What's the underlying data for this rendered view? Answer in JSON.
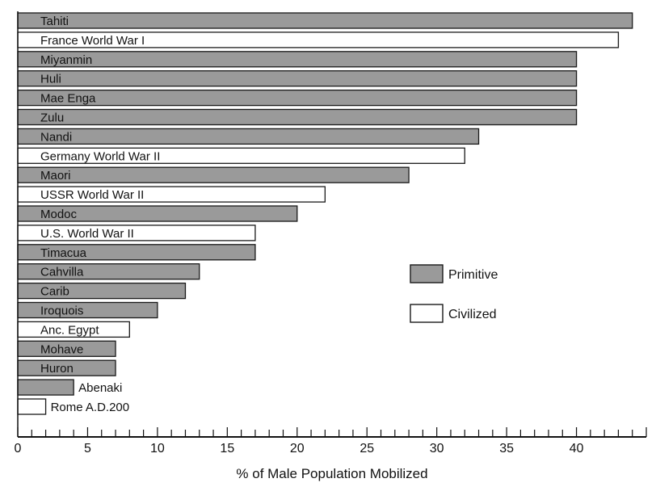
{
  "chart_data": {
    "type": "bar",
    "orientation": "horizontal",
    "xlabel": "% of Male Population Mobilized",
    "xlim": [
      0,
      45
    ],
    "xticks": [
      0,
      5,
      10,
      15,
      20,
      25,
      30,
      35,
      40
    ],
    "grid": false,
    "legend_position": "right",
    "colors": {
      "Primitive": "#9a9a9a",
      "Civilized": "#ffffff"
    },
    "bars": [
      {
        "label": "Tahiti",
        "value": 44,
        "group": "Primitive"
      },
      {
        "label": "France World War I",
        "value": 43,
        "group": "Civilized"
      },
      {
        "label": "Miyanmin",
        "value": 40,
        "group": "Primitive"
      },
      {
        "label": "Huli",
        "value": 40,
        "group": "Primitive"
      },
      {
        "label": "Mae Enga",
        "value": 40,
        "group": "Primitive"
      },
      {
        "label": "Zulu",
        "value": 40,
        "group": "Primitive"
      },
      {
        "label": "Nandi",
        "value": 33,
        "group": "Primitive"
      },
      {
        "label": "Germany World War II",
        "value": 32,
        "group": "Civilized"
      },
      {
        "label": "Maori",
        "value": 28,
        "group": "Primitive"
      },
      {
        "label": "USSR World War II",
        "value": 22,
        "group": "Civilized"
      },
      {
        "label": "Modoc",
        "value": 20,
        "group": "Primitive"
      },
      {
        "label": "U.S. World War II",
        "value": 17,
        "group": "Civilized"
      },
      {
        "label": "Timacua",
        "value": 17,
        "group": "Primitive"
      },
      {
        "label": "Cahvilla",
        "value": 13,
        "group": "Primitive"
      },
      {
        "label": "Carib",
        "value": 12,
        "group": "Primitive"
      },
      {
        "label": "Iroquois",
        "value": 10,
        "group": "Primitive"
      },
      {
        "label": "Anc. Egypt",
        "value": 8,
        "group": "Civilized"
      },
      {
        "label": "Mohave",
        "value": 7,
        "group": "Primitive"
      },
      {
        "label": "Huron",
        "value": 7,
        "group": "Primitive"
      },
      {
        "label": "Abenaki",
        "value": 4,
        "group": "Primitive"
      },
      {
        "label": "Rome A.D.200",
        "value": 2,
        "group": "Civilized"
      }
    ],
    "legend": [
      {
        "label": "Primitive",
        "group": "Primitive"
      },
      {
        "label": "Civilized",
        "group": "Civilized"
      }
    ]
  }
}
